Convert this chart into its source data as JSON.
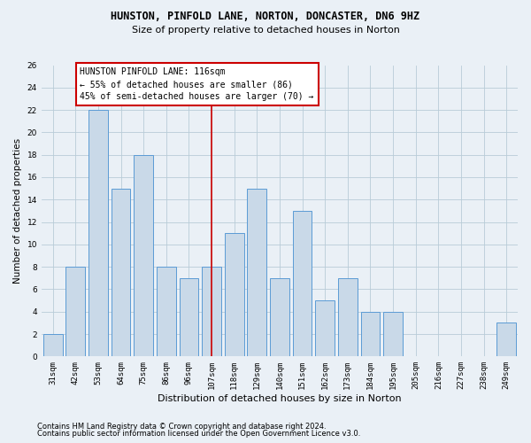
{
  "title": "HUNSTON, PINFOLD LANE, NORTON, DONCASTER, DN6 9HZ",
  "subtitle": "Size of property relative to detached houses in Norton",
  "xlabel": "Distribution of detached houses by size in Norton",
  "ylabel": "Number of detached properties",
  "categories": [
    "31sqm",
    "42sqm",
    "53sqm",
    "64sqm",
    "75sqm",
    "86sqm",
    "96sqm",
    "107sqm",
    "118sqm",
    "129sqm",
    "140sqm",
    "151sqm",
    "162sqm",
    "173sqm",
    "184sqm",
    "195sqm",
    "205sqm",
    "216sqm",
    "227sqm",
    "238sqm",
    "249sqm"
  ],
  "values": [
    2,
    8,
    22,
    15,
    18,
    8,
    7,
    8,
    11,
    15,
    7,
    13,
    5,
    7,
    4,
    4,
    0,
    0,
    0,
    0,
    3
  ],
  "bar_color": "#c9d9e8",
  "bar_edge_color": "#5b9bd5",
  "vline_pos": 7.5,
  "annotation_text": "HUNSTON PINFOLD LANE: 116sqm\n← 55% of detached houses are smaller (86)\n45% of semi-detached houses are larger (70) →",
  "annotation_box_color": "#ffffff",
  "annotation_box_edge_color": "#cc0000",
  "vline_color": "#cc0000",
  "ylim": [
    0,
    26
  ],
  "yticks": [
    0,
    2,
    4,
    6,
    8,
    10,
    12,
    14,
    16,
    18,
    20,
    22,
    24,
    26
  ],
  "grid_color": "#b8ccd8",
  "bg_color": "#eaf0f6",
  "footer1": "Contains HM Land Registry data © Crown copyright and database right 2024.",
  "footer2": "Contains public sector information licensed under the Open Government Licence v3.0.",
  "title_fontsize": 8.5,
  "subtitle_fontsize": 8.0,
  "xlabel_fontsize": 8.0,
  "ylabel_fontsize": 7.5,
  "tick_fontsize": 6.5,
  "annotation_fontsize": 7.0,
  "footer_fontsize": 6.0
}
